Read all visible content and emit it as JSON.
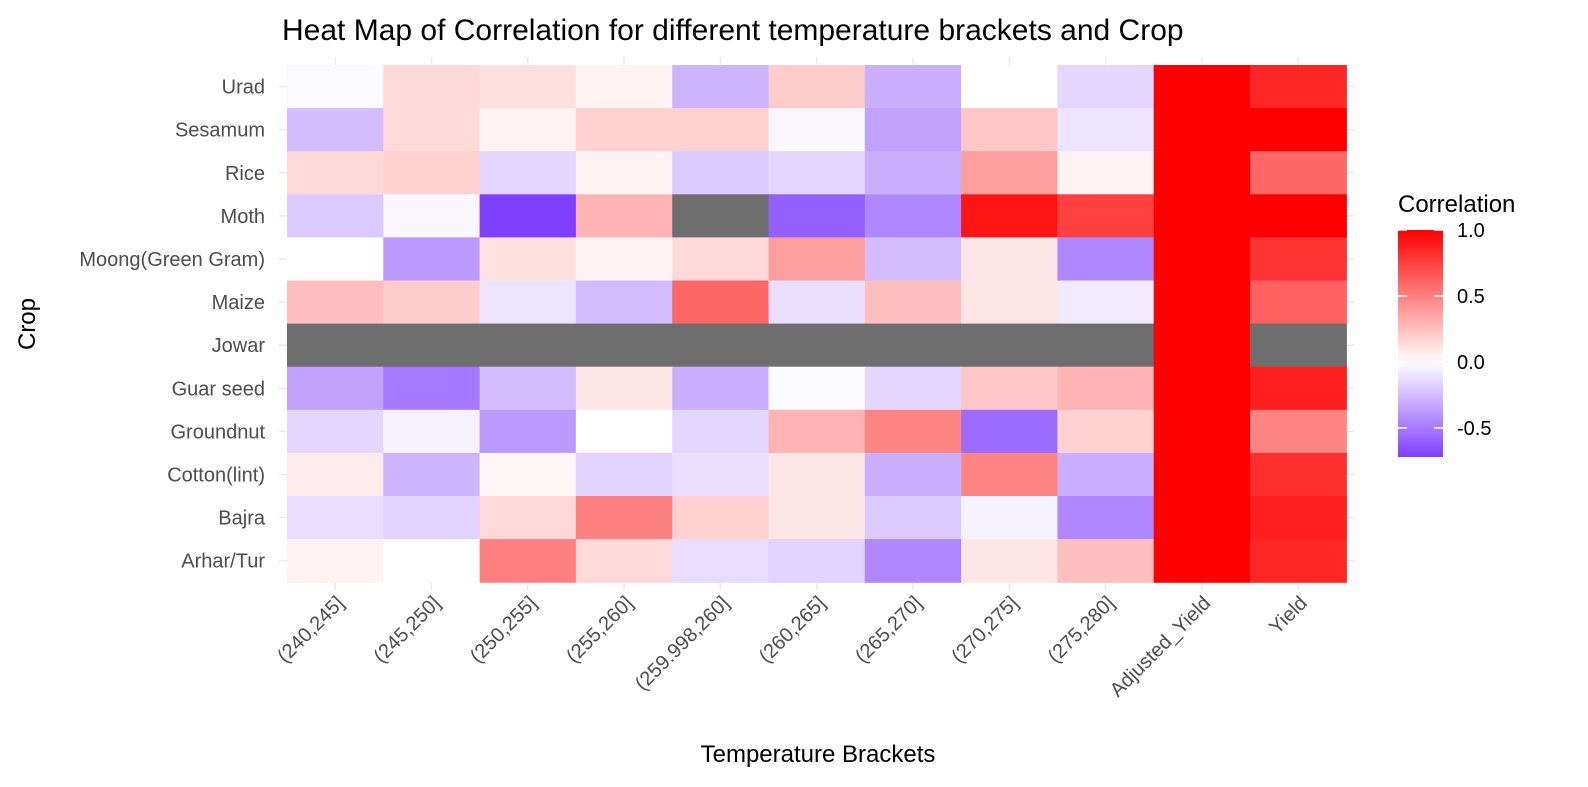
{
  "chart_data": {
    "type": "heatmap",
    "title": "Heat Map of Correlation for different temperature brackets and Crop",
    "xlabel": "Temperature Brackets",
    "ylabel": "Crop",
    "x_categories": [
      "(240,245]",
      "(245,250]",
      "(250,255]",
      "(255,260]",
      "(259.998,260]",
      "(260,265]",
      "(265,270]",
      "(270,275]",
      "(275,280]",
      "Adjusted_Yield",
      "Yield"
    ],
    "y_categories": [
      "Urad",
      "Sesamum",
      "Rice",
      "Moth",
      "Moong(Green Gram)",
      "Maize",
      "Jowar",
      "Guar seed",
      "Groundnut",
      "Cotton(lint)",
      "Bajra",
      "Arhar/Tur"
    ],
    "values": [
      [
        -0.02,
        0.15,
        0.12,
        0.05,
        -0.28,
        0.2,
        -0.3,
        0.0,
        -0.15,
        1.0,
        0.85
      ],
      [
        -0.25,
        0.15,
        0.05,
        0.18,
        0.18,
        -0.03,
        -0.35,
        0.22,
        -0.1,
        1.0,
        1.0
      ],
      [
        0.15,
        0.18,
        -0.15,
        0.05,
        -0.2,
        -0.15,
        -0.3,
        0.38,
        0.05,
        1.0,
        0.6
      ],
      [
        -0.2,
        -0.03,
        -0.72,
        0.3,
        null,
        -0.6,
        -0.45,
        0.92,
        0.75,
        1.0,
        1.0
      ],
      [
        0.0,
        -0.38,
        0.12,
        0.05,
        0.15,
        0.38,
        -0.25,
        0.1,
        -0.45,
        1.0,
        0.8
      ],
      [
        0.25,
        0.2,
        -0.1,
        -0.25,
        0.6,
        -0.12,
        0.25,
        0.1,
        -0.08,
        1.0,
        0.62
      ],
      [
        null,
        null,
        null,
        null,
        null,
        null,
        null,
        null,
        null,
        1.0,
        null
      ],
      [
        -0.35,
        -0.5,
        -0.25,
        0.1,
        -0.3,
        -0.02,
        -0.15,
        0.22,
        0.3,
        1.0,
        0.88
      ],
      [
        -0.15,
        -0.05,
        -0.38,
        0.0,
        -0.15,
        0.3,
        0.48,
        -0.55,
        0.18,
        1.0,
        0.48
      ],
      [
        0.08,
        -0.28,
        0.03,
        -0.17,
        -0.12,
        0.1,
        -0.3,
        0.48,
        -0.3,
        1.0,
        0.82
      ],
      [
        -0.13,
        -0.17,
        0.15,
        0.5,
        0.18,
        0.1,
        -0.2,
        -0.05,
        -0.45,
        1.0,
        0.88
      ],
      [
        0.05,
        0.0,
        0.5,
        0.15,
        -0.13,
        -0.17,
        -0.45,
        0.1,
        0.25,
        1.0,
        0.85
      ]
    ],
    "color_scale": {
      "low": "#7f3fff",
      "mid": "#ffffff",
      "high": "#ff0000",
      "na_color": "#6e6e6e",
      "limits": [
        -0.72,
        1.0
      ]
    },
    "legend": {
      "title": "Correlation",
      "position": "right",
      "ticks": [
        1.0,
        0.5,
        0.0,
        -0.5
      ],
      "tick_labels": [
        "1.0",
        "0.5",
        "0.0",
        "-0.5"
      ]
    },
    "grid": true
  }
}
